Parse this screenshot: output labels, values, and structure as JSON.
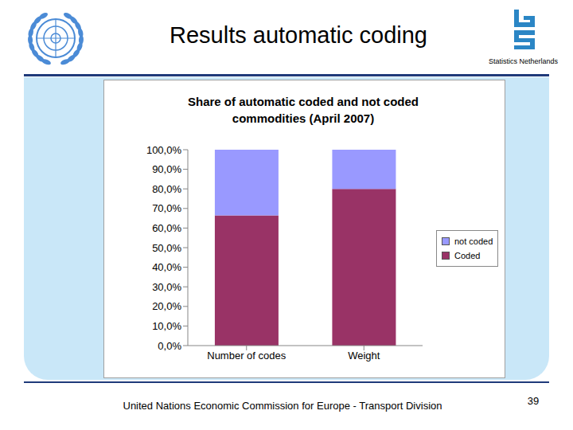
{
  "slide": {
    "title": "Results automatic coding",
    "organization": "Statistics Netherlands",
    "footer": "United Nations Economic Commission for Europe - Transport Division",
    "page": 39
  },
  "chart_data": {
    "type": "bar",
    "title": "Share of automatic coded and not coded commodities (April 2007)",
    "categories": [
      "Number of codes",
      "Weight"
    ],
    "series": [
      {
        "name": "Coded",
        "color": "#993366",
        "values": [
          66.5,
          80
        ]
      },
      {
        "name": "not coded",
        "color": "#9999ff",
        "values": [
          33.5,
          20
        ]
      }
    ],
    "stacked": true,
    "ylim": [
      0,
      100
    ],
    "yticks": [
      {
        "value": 0,
        "label": "0,0%"
      },
      {
        "value": 10,
        "label": "10,0%"
      },
      {
        "value": 20,
        "label": "20,0%"
      },
      {
        "value": 30,
        "label": "30,0%"
      },
      {
        "value": 40,
        "label": "40,0%"
      },
      {
        "value": 50,
        "label": "50,0%"
      },
      {
        "value": 60,
        "label": "60,0%"
      },
      {
        "value": 70,
        "label": "70,0%"
      },
      {
        "value": 80,
        "label": "80,0%"
      },
      {
        "value": 90,
        "label": "90,0%"
      },
      {
        "value": 100,
        "label": "100,0%"
      }
    ],
    "grid": false,
    "legend": "right"
  }
}
